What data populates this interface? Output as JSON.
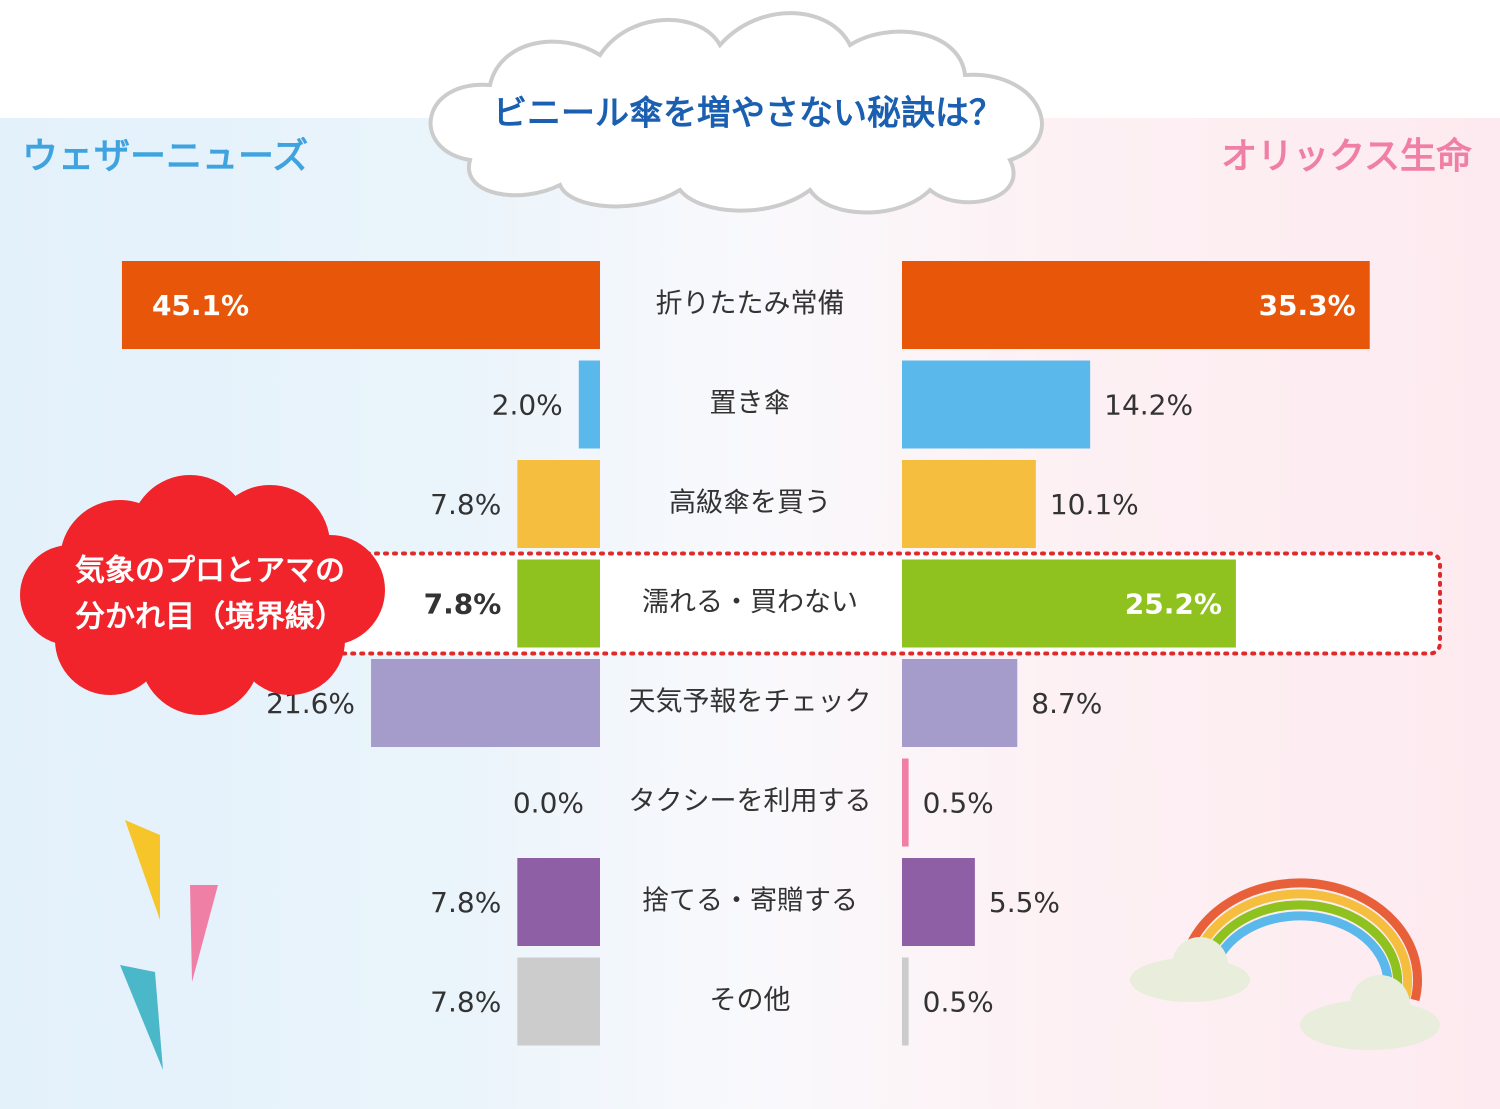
{
  "chart_data": {
    "type": "butterfly-bar",
    "title": "ビニール傘を増やさない秘訣は？",
    "annotation": [
      "気象のプロとアマの",
      "分かれ目（境界線）"
    ],
    "highlight": 3,
    "categories": [
      "折りたたみ常備",
      "置き傘",
      "高級傘を買う",
      "濡れる・買わない",
      "天気予報をチェック",
      "タクシーを利用する",
      "捨てる・寄贈する",
      "その他"
    ],
    "colors": [
      "#e8560a",
      "#5bb8ea",
      "#f6be3e",
      "#8fc21f",
      "#a59ccb",
      "#f07fa6",
      "#8f5fa5",
      "#cccccc"
    ],
    "series": [
      {
        "name": "ウェザーニューズ",
        "color": "#3fa3e0",
        "xlim": [
          0,
          50
        ],
        "values": [
          45.1,
          2.0,
          7.8,
          7.8,
          21.6,
          0.0,
          7.8,
          7.8
        ],
        "value_labels": [
          "45.1%",
          "2.0%",
          "7.8%",
          "7.8%",
          "21.6%",
          "0.0%",
          "7.8%",
          "7.8%"
        ]
      },
      {
        "name": "オリックス生命",
        "color": "#f07fa6",
        "xlim": [
          0,
          40
        ],
        "values": [
          35.3,
          14.2,
          10.1,
          25.2,
          8.7,
          0.5,
          5.5,
          0.5
        ],
        "value_labels": [
          "35.3%",
          "14.2%",
          "10.1%",
          "25.2%",
          "8.7%",
          "0.5%",
          "5.5%",
          "0.5%"
        ]
      }
    ]
  }
}
